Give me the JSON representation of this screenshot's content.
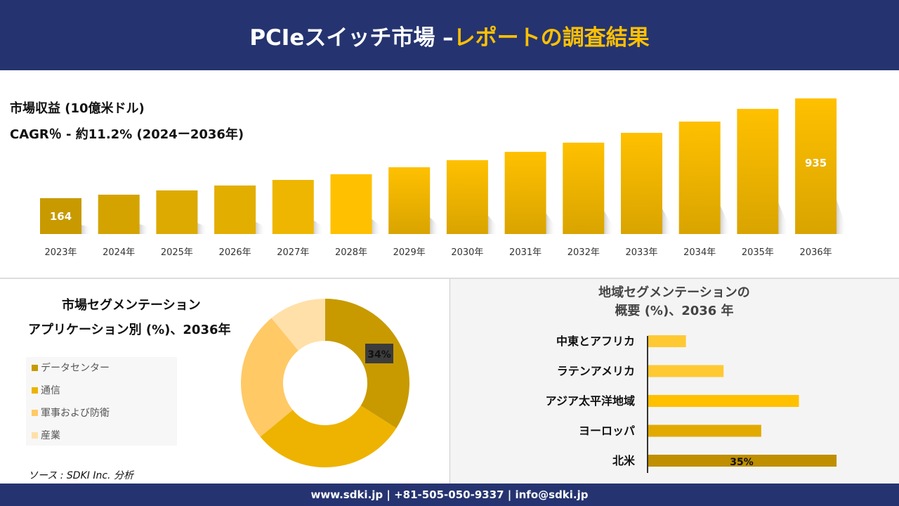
{
  "header": {
    "title_white": "PCIeスイッチ市場 –",
    "title_yellow": "レポートの調査結果"
  },
  "colors": {
    "navy": "#253470",
    "accent": "#ffc000"
  },
  "revenue": {
    "title": "市場収益 (10億米ドル)",
    "cagr": "CAGR％ - 約11.2% (2024ー2036年)"
  },
  "application": {
    "title_line1": "市場セグメンテーション",
    "title_line2": "アプリケーション別 (%)、2036年"
  },
  "region": {
    "title_line1": "地域セグメンテーションの",
    "title_line2": "概要 (%)、2036 年"
  },
  "source": "ソース : SDKI Inc. 分析",
  "footer": "www.sdki.jp | +81-505-050-9337 | info@sdki.jp",
  "chart_data": [
    {
      "type": "bar",
      "categories": [
        "2023年",
        "2024年",
        "2025年",
        "2026年",
        "2027年",
        "2028年",
        "2029年",
        "2030年",
        "2031年",
        "2032年",
        "2033年",
        "2034年",
        "2035年",
        "2036年"
      ],
      "values": [
        164,
        191,
        224,
        262,
        305,
        349,
        403,
        458,
        522,
        593,
        669,
        756,
        854,
        935
      ],
      "data_labels": {
        "2023年": "164",
        "2036年": "935"
      },
      "title": "市場収益 (10億米ドル)",
      "grid": false
    },
    {
      "type": "pie",
      "donut": true,
      "categories": [
        "データセンター",
        "通信",
        "軍事および防衛",
        "産業"
      ],
      "values": [
        34,
        30,
        25,
        11
      ],
      "colors": [
        "#c89a00",
        "#edb300",
        "#ffc966",
        "#ffe0a8"
      ],
      "data_labels": {
        "データセンター": "34%"
      },
      "legend": "left"
    },
    {
      "type": "bar",
      "orientation": "horizontal",
      "categories": [
        "中東とアフリカ",
        "ラテンアメリカ",
        "アジア太平洋地域",
        "ヨーロッパ",
        "北米"
      ],
      "values": [
        7,
        14,
        28,
        21,
        35
      ],
      "colors": [
        "#ffc933",
        "#ffc933",
        "#ffc000",
        "#e2aa00",
        "#bf8f00"
      ],
      "data_labels": {
        "北米": "35%"
      }
    }
  ]
}
